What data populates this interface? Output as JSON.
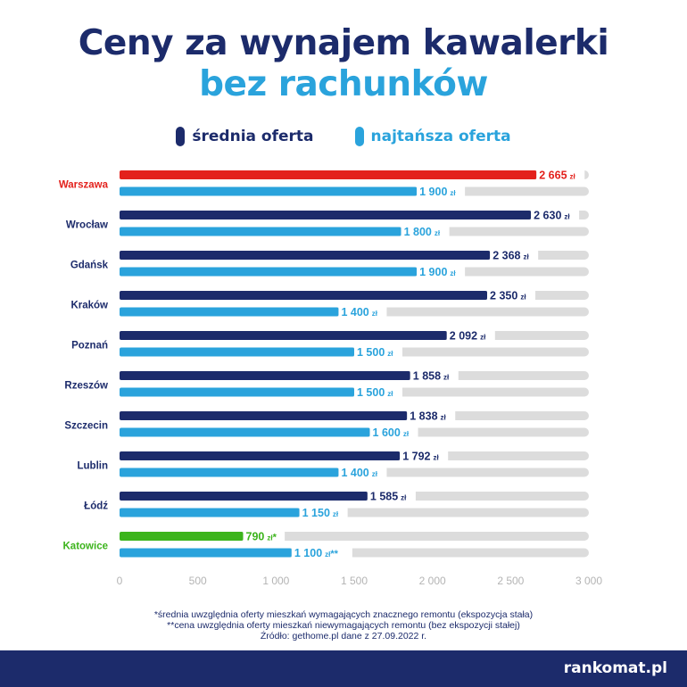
{
  "title_line1": "Ceny za wynajem kawalerki",
  "title_line2": "bez rachunków",
  "legend": [
    {
      "label": "średnia oferta",
      "color": "#1c2b6b"
    },
    {
      "label": "najtańsza oferta",
      "color": "#2aa3dc"
    }
  ],
  "chart_data": {
    "type": "bar",
    "orientation": "horizontal",
    "categories": [
      "Warszawa",
      "Wrocław",
      "Gdańsk",
      "Kraków",
      "Poznań",
      "Rzeszów",
      "Szczecin",
      "Lublin",
      "Łódź",
      "Katowice"
    ],
    "category_colors": [
      "#e3211c",
      "#1c2b6b",
      "#1c2b6b",
      "#1c2b6b",
      "#1c2b6b",
      "#1c2b6b",
      "#1c2b6b",
      "#1c2b6b",
      "#1c2b6b",
      "#3cb41c"
    ],
    "series": [
      {
        "name": "średnia oferta",
        "color": "#1c2b6b",
        "values": [
          2665,
          2630,
          2368,
          2350,
          2092,
          1858,
          1838,
          1792,
          1585,
          790
        ],
        "labels": [
          "2 665",
          "2 630",
          "2 368",
          "2 350",
          "2 092",
          "1 858",
          "1 838",
          "1 792",
          "1 585",
          "790"
        ],
        "suffixes": [
          "",
          "",
          "",
          "",
          "",
          "",
          "",
          "",
          "",
          "*"
        ],
        "highlight_colors": [
          "#e3211c",
          null,
          null,
          null,
          null,
          null,
          null,
          null,
          null,
          "#3cb41c"
        ]
      },
      {
        "name": "najtańsza oferta",
        "color": "#2aa3dc",
        "values": [
          1900,
          1800,
          1900,
          1400,
          1500,
          1500,
          1600,
          1400,
          1150,
          1100
        ],
        "labels": [
          "1 900",
          "1 800",
          "1 900",
          "1 400",
          "1 500",
          "1 500",
          "1 600",
          "1 400",
          "1 150",
          "1 100"
        ],
        "suffixes": [
          "",
          "",
          "",
          "",
          "",
          "",
          "",
          "",
          "",
          "**"
        ],
        "highlight_colors": [
          null,
          null,
          null,
          null,
          null,
          null,
          null,
          null,
          null,
          null
        ]
      }
    ],
    "unit": "zł",
    "xlim": [
      0,
      3000
    ],
    "xticks": [
      0,
      500,
      1000,
      1500,
      2000,
      2500,
      3000
    ],
    "xtick_labels": [
      "0",
      "500",
      "1 000",
      "1 500",
      "2 000",
      "2 500",
      "3 000"
    ],
    "track_color": "#dcdcdc",
    "legend_position": "top"
  },
  "footnotes": [
    "*średnia uwzględnia oferty mieszkań wymagających znacznego remontu (ekspozycja stała)",
    "**cena uwzględnia oferty mieszkań niewymagających remontu (bez ekspozycji stałej)",
    "Źródło: gethome.pl dane z 27.09.2022 r."
  ],
  "brand": "rankomat.pl"
}
